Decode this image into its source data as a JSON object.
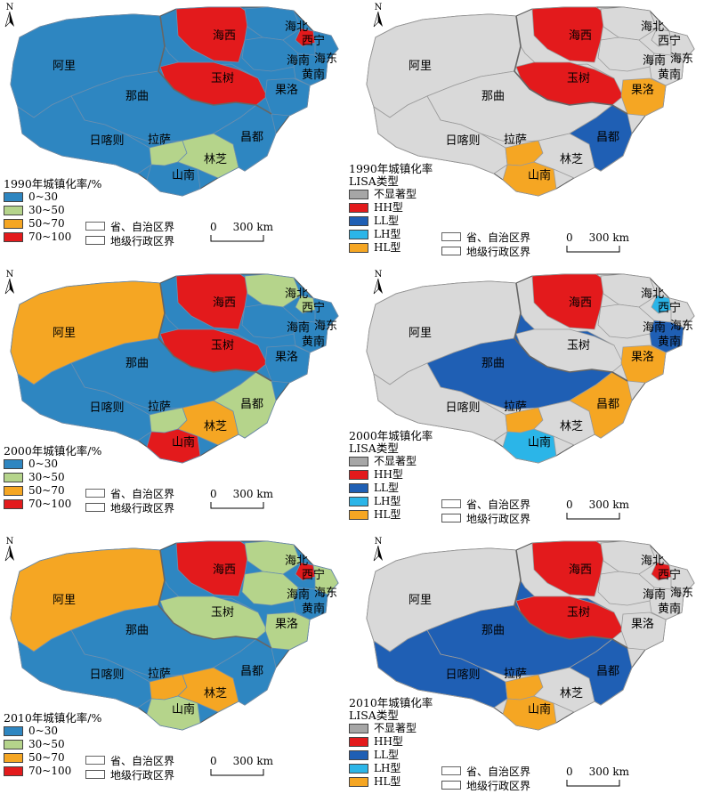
{
  "colors": {
    "urban": [
      "#2e86c1",
      "#b5d48b",
      "#f5a623",
      "#e31a1c"
    ],
    "lisa": [
      "#d9d9d9",
      "#e31a1c",
      "#1f5fb4",
      "#2bb5e8",
      "#f5a623"
    ],
    "lisa_legend": [
      "#a6a6a6",
      "#e31a1c",
      "#1f5fb4",
      "#2bb5e8",
      "#f5a623"
    ]
  },
  "north_label": "N",
  "region_labels": [
    "阿里",
    "那曲",
    "日喀则",
    "拉萨",
    "山南",
    "林芝",
    "昌都",
    "玉树",
    "海西",
    "海北",
    "西宁",
    "海南",
    "海东",
    "黄南",
    "果洛"
  ],
  "urban_classes": [
    "0~30",
    "30~50",
    "50~70",
    "70~100"
  ],
  "lisa_classes": [
    "不显著型",
    "HH型",
    "LL型",
    "LH型",
    "HL型"
  ],
  "boundary_legend": {
    "province": "省、自治区界",
    "prefecture": "地级行政区界"
  },
  "scale_bar": {
    "zero": "0",
    "length": "300 km"
  },
  "panels": [
    {
      "id": "urban-1990",
      "type": "urban",
      "title": "1990年城镇化率/%",
      "region_class": {
        "阿里": 0,
        "那曲": 0,
        "日喀则": 0,
        "拉萨": 1,
        "山南": 0,
        "林芝": 1,
        "昌都": 0,
        "玉树": 3,
        "海西": 3,
        "海北": 0,
        "西宁": 3,
        "海南": 0,
        "海东": 0,
        "黄南": 0,
        "果洛": 0
      }
    },
    {
      "id": "lisa-1990",
      "type": "lisa",
      "title": "1990年城镇化率",
      "subtitle": "LISA类型",
      "region_class": {
        "阿里": 0,
        "那曲": 0,
        "日喀则": 0,
        "拉萨": 4,
        "山南": 4,
        "林芝": 0,
        "昌都": 2,
        "玉树": 1,
        "海西": 1,
        "海北": 0,
        "西宁": 0,
        "海南": 0,
        "海东": 0,
        "黄南": 0,
        "果洛": 4
      }
    },
    {
      "id": "urban-2000",
      "type": "urban",
      "title": "2000年城镇化率/%",
      "region_class": {
        "阿里": 2,
        "那曲": 0,
        "日喀则": 0,
        "拉萨": 1,
        "山南": 3,
        "林芝": 2,
        "昌都": 1,
        "玉树": 3,
        "海西": 3,
        "海北": 1,
        "西宁": 1,
        "海南": 0,
        "海东": 0,
        "黄南": 0,
        "果洛": 0
      }
    },
    {
      "id": "lisa-2000",
      "type": "lisa",
      "title": "2000年城镇化率",
      "subtitle": "LISA类型",
      "region_class": {
        "阿里": 0,
        "那曲": 2,
        "日喀则": 0,
        "拉萨": 4,
        "山南": 3,
        "林芝": 0,
        "昌都": 4,
        "玉树": 0,
        "海西": 1,
        "海北": 0,
        "西宁": 3,
        "海南": 0,
        "海东": 0,
        "黄南": 2,
        "果洛": 4
      }
    },
    {
      "id": "urban-2010",
      "type": "urban",
      "title": "2010年城镇化率/%",
      "region_class": {
        "阿里": 2,
        "那曲": 0,
        "日喀则": 0,
        "拉萨": 2,
        "山南": 1,
        "林芝": 2,
        "昌都": 0,
        "玉树": 1,
        "海西": 3,
        "海北": 1,
        "西宁": 3,
        "海南": 1,
        "海东": 1,
        "黄南": 0,
        "果洛": 1
      }
    },
    {
      "id": "lisa-2010",
      "type": "lisa",
      "title": "2010年城镇化率",
      "subtitle": "LISA类型",
      "region_class": {
        "阿里": 0,
        "那曲": 2,
        "日喀则": 2,
        "拉萨": 4,
        "山南": 4,
        "林芝": 0,
        "昌都": 2,
        "玉树": 1,
        "海西": 1,
        "海北": 0,
        "西宁": 1,
        "海南": 0,
        "海东": 0,
        "黄南": 0,
        "果洛": 0
      }
    }
  ]
}
